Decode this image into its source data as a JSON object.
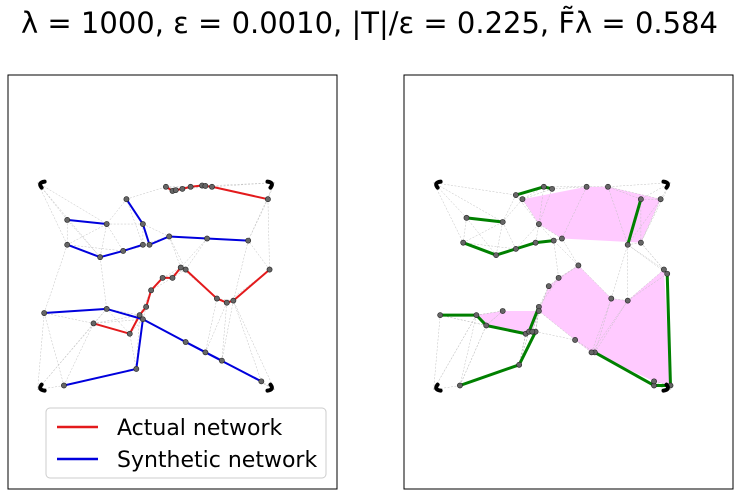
{
  "figure": {
    "title": "λ = 1000, ε = 0.0010, |T|/ε = 0.225, F̃λ = 0.584"
  },
  "colors": {
    "actual": "#e31a1c",
    "synthetic": "#0000dd",
    "combined": "#008000",
    "region_fill": "#ff66ff",
    "node": "#666666",
    "mesh": "#c0c0c0"
  },
  "chart_data": [
    {
      "type": "scatter",
      "panel": "left",
      "xlim": [
        0,
        1
      ],
      "ylim": [
        0,
        1
      ],
      "grid": false,
      "legend": {
        "placement": "bottom-center",
        "entries": [
          "Actual network",
          "Synthetic network"
        ]
      },
      "series": [
        {
          "name": "Actual network",
          "paths": [
            [
              [
                0.48,
                0.73
              ],
              [
                0.5,
                0.72
              ],
              [
                0.51,
                0.722
              ],
              [
                0.53,
                0.725
              ],
              [
                0.555,
                0.73
              ],
              [
                0.59,
                0.733
              ],
              [
                0.6,
                0.732
              ],
              [
                0.62,
                0.73
              ],
              [
                0.79,
                0.7
              ]
            ],
            [
              [
                0.26,
                0.4
              ],
              [
                0.37,
                0.375
              ],
              [
                0.4,
                0.42
              ],
              [
                0.42,
                0.44
              ],
              [
                0.435,
                0.48
              ],
              [
                0.47,
                0.51
              ],
              [
                0.5,
                0.51
              ],
              [
                0.525,
                0.535
              ],
              [
                0.54,
                0.53
              ],
              [
                0.635,
                0.46
              ],
              [
                0.665,
                0.45
              ],
              [
                0.685,
                0.455
              ],
              [
                0.795,
                0.53
              ]
            ]
          ]
        },
        {
          "name": "Synthetic network",
          "paths": [
            [
              [
                0.36,
                0.7
              ],
              [
                0.41,
                0.64
              ],
              [
                0.43,
                0.59
              ],
              [
                0.49,
                0.61
              ],
              [
                0.605,
                0.605
              ],
              [
                0.73,
                0.6
              ]
            ],
            [
              [
                0.18,
                0.65
              ],
              [
                0.3,
                0.64
              ]
            ],
            [
              [
                0.18,
                0.59
              ],
              [
                0.28,
                0.56
              ],
              [
                0.35,
                0.575
              ],
              [
                0.41,
                0.59
              ]
            ],
            [
              [
                0.11,
                0.425
              ],
              [
                0.3,
                0.435
              ],
              [
                0.41,
                0.41
              ],
              [
                0.54,
                0.355
              ],
              [
                0.6,
                0.33
              ],
              [
                0.77,
                0.26
              ]
            ],
            [
              [
                0.41,
                0.41
              ],
              [
                0.39,
                0.29
              ],
              [
                0.17,
                0.25
              ]
            ],
            [
              [
                0.54,
                0.355
              ],
              [
                0.65,
                0.31
              ]
            ]
          ]
        }
      ],
      "corner_nodes": [
        [
          0.09,
          0.74
        ],
        [
          0.81,
          0.74
        ],
        [
          0.09,
          0.24
        ],
        [
          0.81,
          0.24
        ]
      ]
    },
    {
      "type": "scatter",
      "panel": "right",
      "xlim": [
        0,
        1
      ],
      "ylim": [
        0,
        1
      ],
      "grid": false,
      "green_paths": [
        [
          [
            0.34,
            0.71
          ],
          [
            0.425,
            0.73
          ],
          [
            0.45,
            0.725
          ]
        ],
        [
          [
            0.19,
            0.655
          ],
          [
            0.3,
            0.645
          ]
        ],
        [
          [
            0.18,
            0.595
          ],
          [
            0.28,
            0.565
          ],
          [
            0.34,
            0.58
          ],
          [
            0.4,
            0.595
          ],
          [
            0.455,
            0.6
          ]
        ],
        [
          [
            0.72,
            0.7
          ],
          [
            0.68,
            0.59
          ]
        ],
        [
          [
            0.11,
            0.42
          ],
          [
            0.22,
            0.42
          ],
          [
            0.25,
            0.395
          ],
          [
            0.37,
            0.375
          ],
          [
            0.38,
            0.38
          ],
          [
            0.41,
            0.44
          ]
        ],
        [
          [
            0.35,
            0.3
          ],
          [
            0.17,
            0.25
          ]
        ],
        [
          [
            0.35,
            0.3
          ],
          [
            0.4,
            0.38
          ]
        ],
        [
          [
            0.58,
            0.33
          ],
          [
            0.76,
            0.25
          ],
          [
            0.81,
            0.25
          ],
          [
            0.8,
            0.52
          ]
        ]
      ],
      "regions": [
        [
          [
            0.36,
            0.7
          ],
          [
            0.555,
            0.73
          ],
          [
            0.62,
            0.73
          ],
          [
            0.78,
            0.7
          ],
          [
            0.72,
            0.595
          ],
          [
            0.48,
            0.605
          ],
          [
            0.41,
            0.64
          ]
        ],
        [
          [
            0.41,
            0.43
          ],
          [
            0.44,
            0.49
          ],
          [
            0.47,
            0.51
          ],
          [
            0.53,
            0.54
          ],
          [
            0.63,
            0.46
          ],
          [
            0.68,
            0.455
          ],
          [
            0.79,
            0.53
          ],
          [
            0.81,
            0.25
          ],
          [
            0.76,
            0.26
          ],
          [
            0.57,
            0.33
          ],
          [
            0.52,
            0.36
          ]
        ],
        [
          [
            0.22,
            0.42
          ],
          [
            0.3,
            0.43
          ],
          [
            0.41,
            0.43
          ],
          [
            0.39,
            0.38
          ],
          [
            0.37,
            0.375
          ],
          [
            0.25,
            0.395
          ]
        ]
      ],
      "corner_nodes": [
        [
          0.09,
          0.74
        ],
        [
          0.81,
          0.74
        ],
        [
          0.09,
          0.24
        ],
        [
          0.81,
          0.24
        ]
      ]
    }
  ]
}
